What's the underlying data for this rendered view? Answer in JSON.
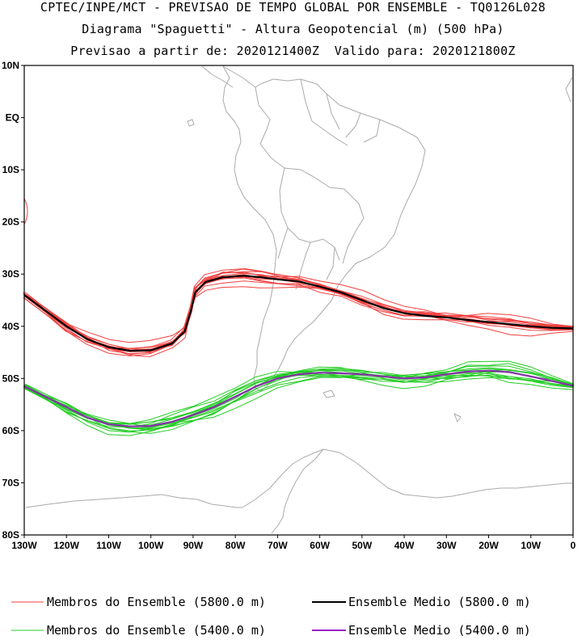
{
  "header": {
    "line1": "CPTEC/INPE/MCT - PREVISAO DE TEMPO GLOBAL POR ENSEMBLE - TQ0126L028",
    "line2": "Diagrama \"Spaguetti\" - Altura Geopotencial (m) (500 hPa)",
    "line3": "Previsao a partir de: 2020121400Z  Valido para: 2020121800Z"
  },
  "map": {
    "lat_labels": [
      "10N",
      "EQ",
      "10S",
      "20S",
      "30S",
      "40S",
      "50S",
      "60S",
      "70S",
      "80S"
    ],
    "lon_labels": [
      "130W",
      "120W",
      "110W",
      "100W",
      "90W",
      "80W",
      "70W",
      "60W",
      "50W",
      "40W",
      "30W",
      "20W",
      "10W",
      "0"
    ],
    "extent": {
      "lon_min": -130,
      "lon_max": 0,
      "lat_min": -80,
      "lat_max": 10
    }
  },
  "contours": {
    "c5800_mean": [
      [
        -130,
        -34
      ],
      [
        -125,
        -37
      ],
      [
        -120,
        -40
      ],
      [
        -115,
        -42.5
      ],
      [
        -110,
        -44
      ],
      [
        -105,
        -44.7
      ],
      [
        -100,
        -44.6
      ],
      [
        -95,
        -43.3
      ],
      [
        -92,
        -41
      ],
      [
        -90.5,
        -37
      ],
      [
        -89.5,
        -33.5
      ],
      [
        -87,
        -31.5
      ],
      [
        -83,
        -30.6
      ],
      [
        -78,
        -30.3
      ],
      [
        -74,
        -30.6
      ],
      [
        -70,
        -31
      ],
      [
        -65,
        -31.4
      ],
      [
        -60,
        -32.4
      ],
      [
        -55,
        -33.5
      ],
      [
        -50,
        -35
      ],
      [
        -45,
        -36.5
      ],
      [
        -40,
        -37.5
      ],
      [
        -35,
        -38
      ],
      [
        -30,
        -38.3
      ],
      [
        -25,
        -38.8
      ],
      [
        -20,
        -39.2
      ],
      [
        -15,
        -39.6
      ],
      [
        -10,
        -40
      ],
      [
        -5,
        -40.3
      ],
      [
        0,
        -40.4
      ]
    ],
    "c5400_mean": [
      [
        -130,
        -51.5
      ],
      [
        -125,
        -53.5
      ],
      [
        -120,
        -55.5
      ],
      [
        -115,
        -57.5
      ],
      [
        -110,
        -58.8
      ],
      [
        -105,
        -59.2
      ],
      [
        -100,
        -59.1
      ],
      [
        -95,
        -58.3
      ],
      [
        -90,
        -57
      ],
      [
        -85,
        -55.5
      ],
      [
        -80,
        -53.5
      ],
      [
        -75,
        -51.5
      ],
      [
        -70,
        -50
      ],
      [
        -65,
        -49.2
      ],
      [
        -60,
        -48.9
      ],
      [
        -55,
        -49
      ],
      [
        -50,
        -49.2
      ],
      [
        -45,
        -49.6
      ],
      [
        -40,
        -50
      ],
      [
        -35,
        -49.8
      ],
      [
        -30,
        -49.2
      ],
      [
        -25,
        -48.7
      ],
      [
        -20,
        -48.5
      ],
      [
        -15,
        -48.8
      ],
      [
        -10,
        -49.6
      ],
      [
        -5,
        -50.5
      ],
      [
        0,
        -51.4
      ]
    ]
  },
  "legend": {
    "member_5800": "Membros do Ensemble (5800.0 m)",
    "mean_5800": "Ensemble Medio (5800.0 m)",
    "member_5400": "Membros do Ensemble (5400.0 m)",
    "mean_5400": "Ensemble Medio (5400.0 m)"
  },
  "colors": {
    "member_5800": "#f04040",
    "mean_5800": "#000000",
    "member_5400": "#22cc22",
    "mean_5400": "#9a22c8",
    "geography": "#aaaaaa"
  }
}
